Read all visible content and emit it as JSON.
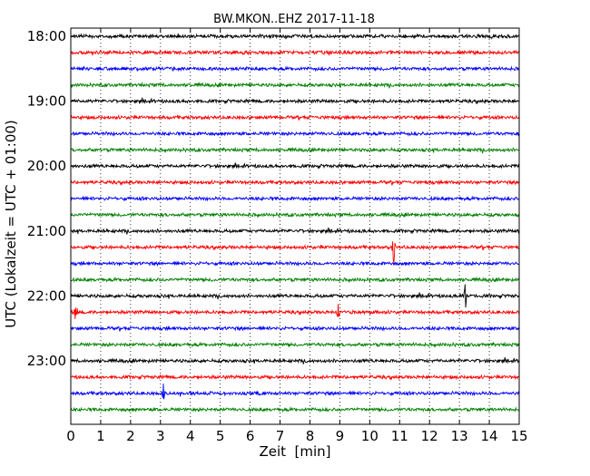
{
  "chart_data": {
    "type": "line",
    "title": "BW.MKON..EHZ 2017-11-18",
    "xlabel": "Zeit  [min]",
    "ylabel": "UTC (Lokalzeit = UTC + 01:00)",
    "xlim": [
      0,
      15
    ],
    "x_ticks": [
      "0",
      "1",
      "2",
      "3",
      "4",
      "5",
      "6",
      "7",
      "8",
      "9",
      "10",
      "11",
      "12",
      "13",
      "14",
      "15"
    ],
    "y_tick_labels": [
      {
        "label": "18:00",
        "row": 0
      },
      {
        "label": "19:00",
        "row": 4
      },
      {
        "label": "20:00",
        "row": 8
      },
      {
        "label": "21:00",
        "row": 12
      },
      {
        "label": "22:00",
        "row": 16
      },
      {
        "label": "23:00",
        "row": 20
      }
    ],
    "row_start": "18:00",
    "row_interval_min": 15,
    "row_count": 24,
    "grid": "vertical dotted lines at each minute",
    "trace_colors": [
      "#000000",
      "#ff0000",
      "#0000ff",
      "#008000"
    ],
    "events": [
      {
        "row": 13,
        "minute": 10.8,
        "amplitude": 1.3,
        "color": "#0000ff"
      },
      {
        "row": 16,
        "minute": 13.2,
        "amplitude": 1.0,
        "color": "#000000"
      },
      {
        "row": 17,
        "minute": 0.15,
        "amplitude": 0.5,
        "color": "#ff0000"
      },
      {
        "row": 17,
        "minute": 8.95,
        "amplitude": 0.6,
        "color": "#ff0000"
      },
      {
        "row": 22,
        "minute": 3.1,
        "amplitude": 0.65,
        "color": "#ff0000"
      }
    ]
  }
}
